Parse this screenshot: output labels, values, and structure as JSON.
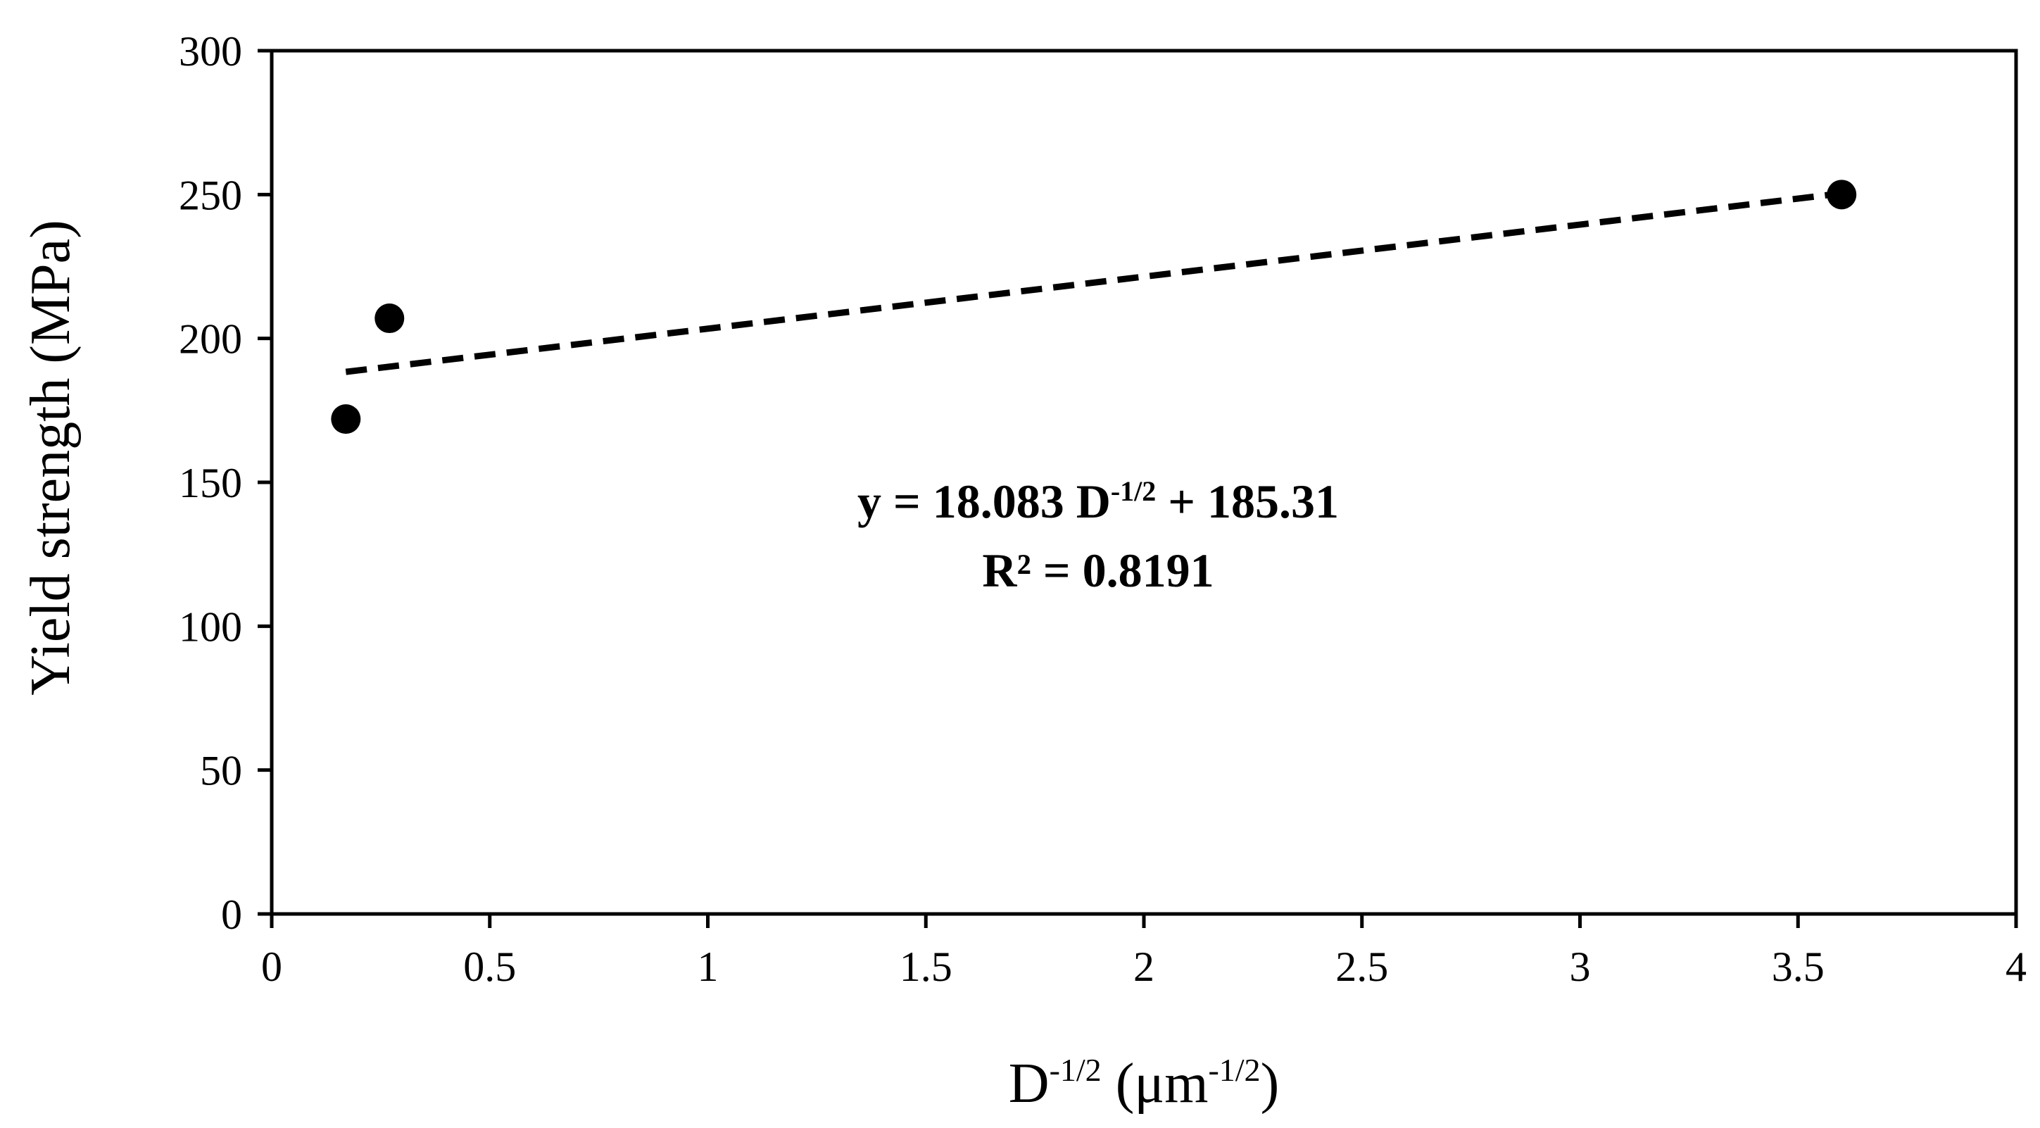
{
  "chart_data": {
    "type": "scatter",
    "series": [
      {
        "points": [
          {
            "x": 0.17,
            "y": 172
          },
          {
            "x": 0.27,
            "y": 207
          },
          {
            "x": 3.6,
            "y": 250
          }
        ],
        "marker": "circle",
        "color": "#000000"
      }
    ],
    "trendline": {
      "type": "linear",
      "slope": 18.083,
      "intercept": 185.31,
      "x_range": [
        0.17,
        3.6
      ],
      "style": "dashed",
      "color": "#000000"
    },
    "xlabel": {
      "base": "D",
      "sup": "-1/2",
      "unit_open": " (μm",
      "unit_sup": "-1/2",
      "unit_close": ")"
    },
    "ylabel": "Yield strength (MPa)",
    "xlim": [
      0,
      4
    ],
    "ylim": [
      0,
      300
    ],
    "x_ticks": [
      "0",
      "0.5",
      "1",
      "1.5",
      "2",
      "2.5",
      "3",
      "3.5",
      "4"
    ],
    "y_ticks": [
      "0",
      "50",
      "100",
      "150",
      "200",
      "250",
      "300"
    ],
    "annotation": {
      "equation_prefix": "y = 18.083 D",
      "equation_sup": "-1/2",
      "equation_suffix": " + 185.31",
      "r2": "R² = 0.8191"
    },
    "grid": false,
    "legend": "none"
  }
}
